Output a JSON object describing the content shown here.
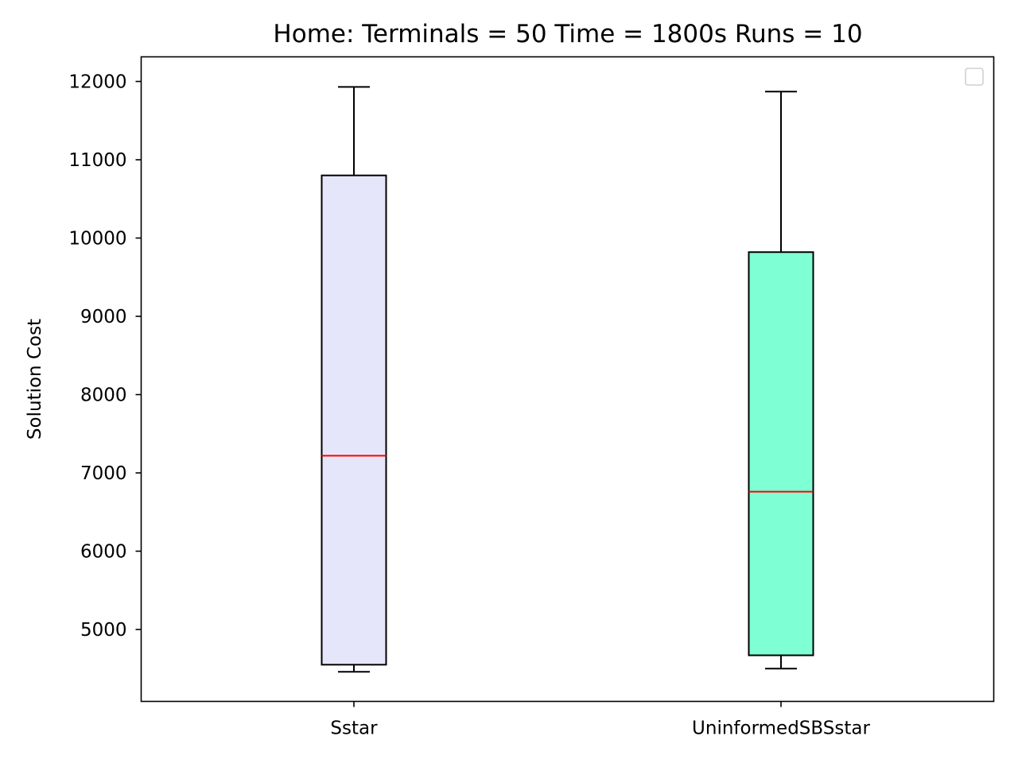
{
  "chart_data": {
    "type": "box",
    "title": "Home:  Terminals = 50  Time = 1800s  Runs = 10",
    "xlabel": "",
    "ylabel": "Solution Cost",
    "ylim": [
      4100,
      12300
    ],
    "yticks": [
      5000,
      6000,
      7000,
      8000,
      9000,
      10000,
      11000,
      12000
    ],
    "ytick_labels": [
      "5000",
      "6000",
      "7000",
      "8000",
      "9000",
      "10000",
      "11000",
      "12000"
    ],
    "categories": [
      "Sstar",
      "UninformedSBSstar"
    ],
    "series": [
      {
        "min": 4460,
        "q1": 4550,
        "median": 7220,
        "q3": 10800,
        "max": 11930,
        "color": "#e6e6fa"
      },
      {
        "min": 4500,
        "q1": 4670,
        "median": 6760,
        "q3": 9820,
        "max": 11870,
        "color": "#7fffd4"
      }
    ],
    "median_color": "#ff0000",
    "grid": false,
    "legend": {
      "placement": "top-right",
      "entries": []
    }
  }
}
